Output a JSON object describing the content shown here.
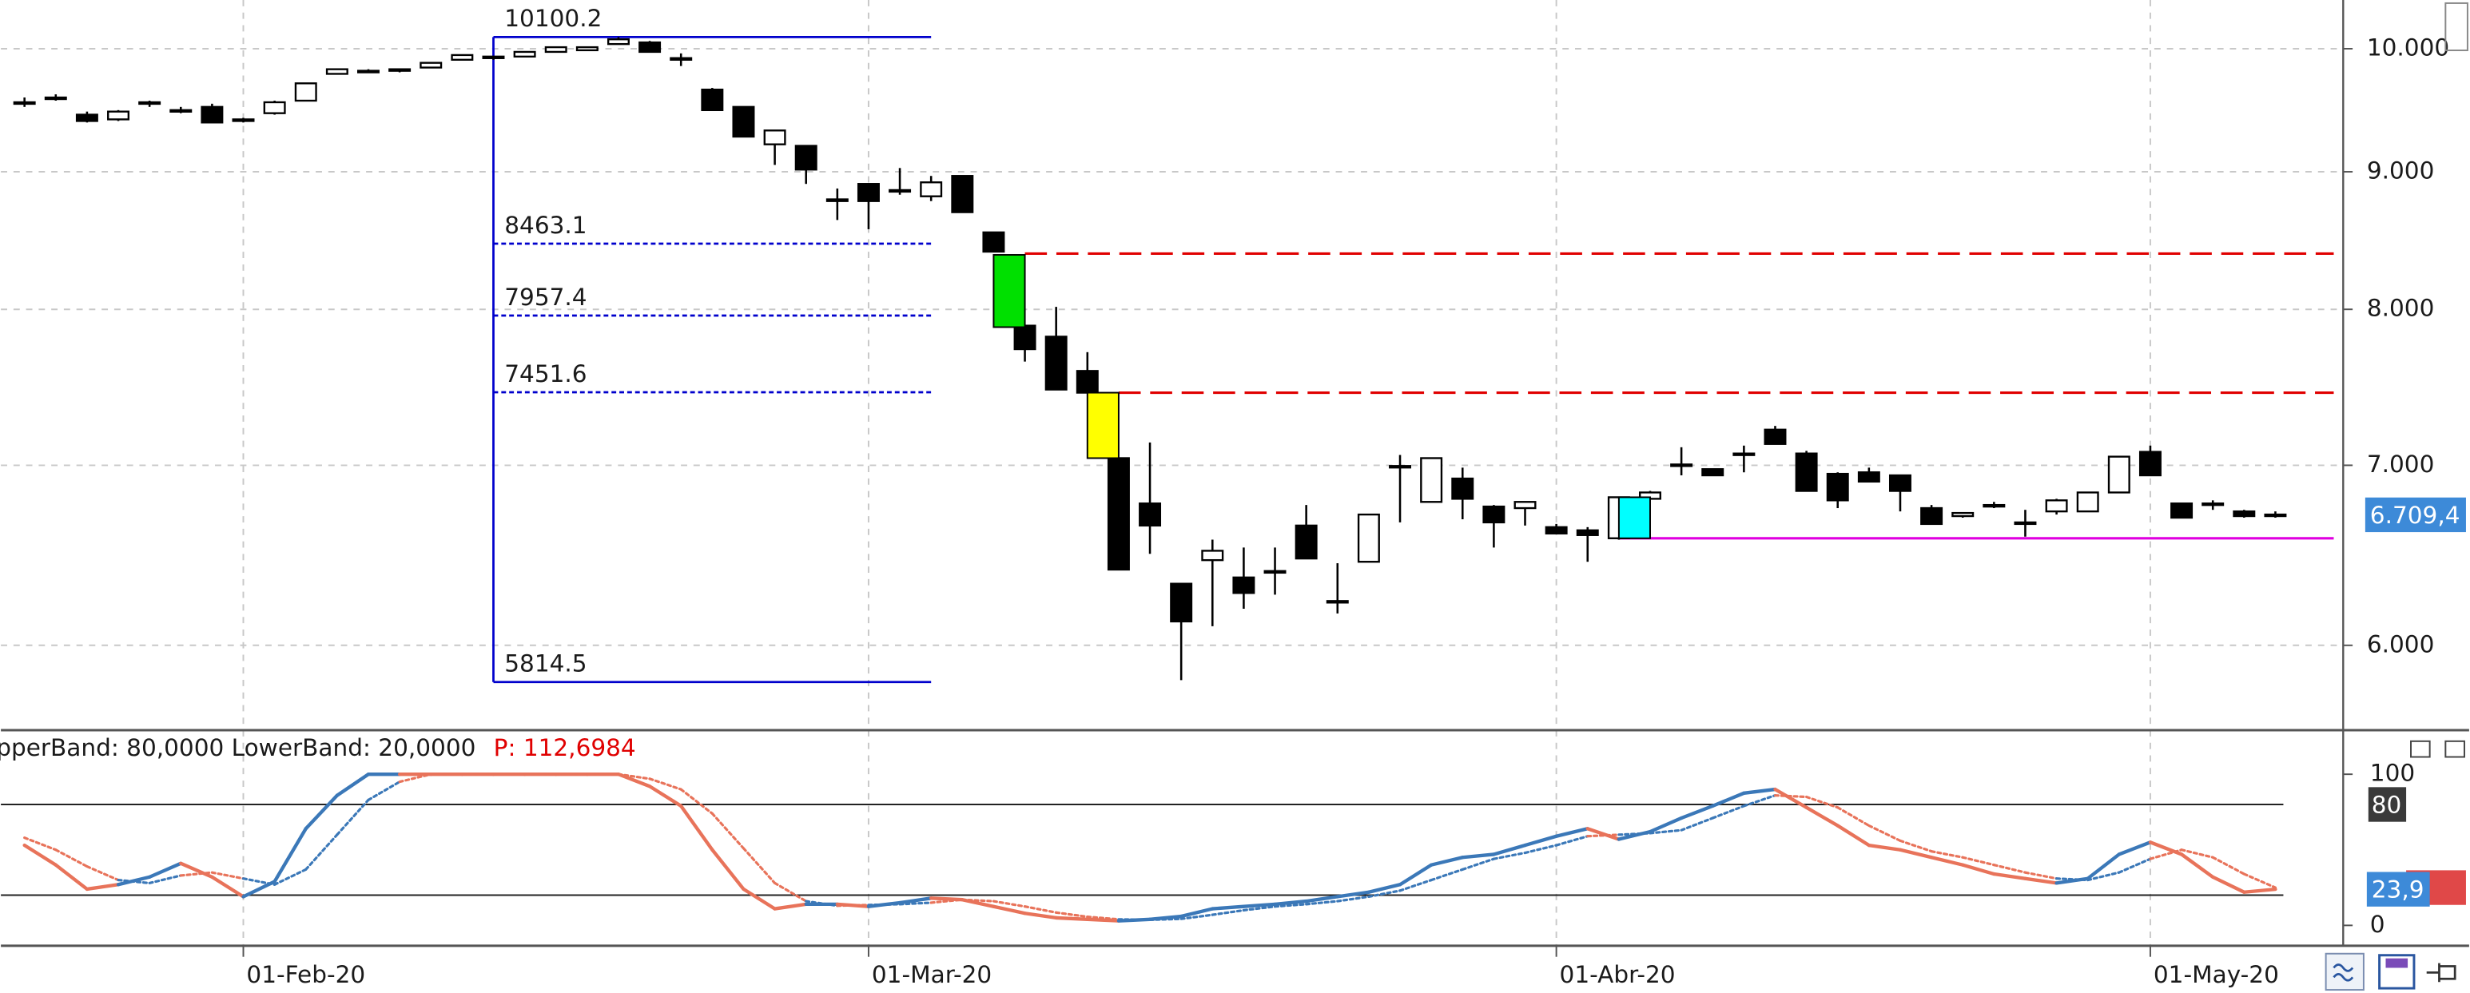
{
  "chart_data": [
    {
      "type": "candlestick",
      "categories": [
        null,
        null,
        null,
        null,
        null,
        null,
        null,
        "01-Feb-20",
        null,
        null,
        null,
        null,
        null,
        null,
        null,
        null,
        null,
        null,
        null,
        null,
        null,
        null,
        null,
        null,
        null,
        null,
        null,
        "01-Mar-20",
        null,
        null,
        null,
        null,
        null,
        null,
        null,
        null,
        null,
        null,
        null,
        null,
        null,
        null,
        null,
        null,
        null,
        null,
        null,
        null,
        null,
        "01-Abr-20",
        null,
        null,
        null,
        null,
        null,
        null,
        null,
        null,
        null,
        null,
        null,
        null,
        null,
        null,
        null,
        null,
        null,
        null,
        "01-May-20",
        null,
        null,
        null,
        null
      ],
      "open": [
        9552,
        9591,
        9451,
        9413,
        9540,
        9488,
        9514,
        9413,
        9463,
        9565,
        9787,
        9813,
        9813,
        9840,
        9906,
        9920,
        9933,
        9973,
        9987,
        10040,
        10054,
        9920,
        9656,
        9514,
        9214,
        9202,
        8777,
        8907,
        8860,
        8813,
        8968,
        8545,
        7889,
        7815,
        7589,
        7043,
        6775,
        6325,
        6454,
        6359,
        6385,
        6648,
        6232,
        6445,
        6996,
        6784,
        6921,
        6757,
        6748,
        6639,
        6621,
        6576,
        6802,
        7005,
        6977,
        7071,
        7217,
        7071,
        6949,
        6958,
        6940,
        6748,
        6702,
        6766,
        6657,
        6729,
        6729,
        6839,
        7081,
        6775,
        6766,
        6729,
        6711
      ],
      "high": [
        9591,
        9617,
        9476,
        9488,
        9565,
        9514,
        9540,
        9425,
        9565,
        9708,
        9826,
        9826,
        9826,
        9880,
        9946,
        9933,
        9973,
        10013,
        10013,
        10100,
        10067,
        9960,
        9670,
        9514,
        9324,
        9202,
        8872,
        8907,
        9029,
        8968,
        8968,
        8545,
        7889,
        8017,
        7712,
        7043,
        7138,
        6325,
        6568,
        6524,
        6524,
        6766,
        6437,
        6711,
        7062,
        7043,
        6986,
        6766,
        6784,
        6657,
        6639,
        6811,
        6848,
        7109,
        6977,
        7119,
        7240,
        7087,
        6958,
        6986,
        6940,
        6766,
        6720,
        6784,
        6738,
        6802,
        6839,
        7052,
        7119,
        6775,
        6793,
        6738,
        6729
      ],
      "low": [
        9514,
        9565,
        9388,
        9400,
        9514,
        9463,
        9388,
        9388,
        9451,
        9565,
        9787,
        9800,
        9800,
        9840,
        9906,
        9906,
        9933,
        9973,
        9987,
        10040,
        9973,
        9853,
        9488,
        9275,
        9053,
        8907,
        8636,
        8568,
        8825,
        8777,
        8694,
        8405,
        7650,
        7469,
        7449,
        6402,
        6489,
        5824,
        6099,
        6191,
        6266,
        6463,
        6166,
        6445,
        6666,
        6784,
        6684,
        6524,
        6648,
        6603,
        6445,
        6568,
        6802,
        6940,
        6940,
        6958,
        7129,
        6848,
        6748,
        6903,
        6729,
        6657,
        6693,
        6748,
        6585,
        6711,
        6729,
        6839,
        6940,
        6693,
        6738,
        6693,
        6693
      ],
      "close": [
        9540,
        9578,
        9400,
        9476,
        9552,
        9476,
        9388,
        9400,
        9552,
        9708,
        9826,
        9813,
        9826,
        9880,
        9946,
        9933,
        9973,
        10013,
        10013,
        10081,
        9973,
        9906,
        9488,
        9275,
        9324,
        9017,
        8790,
        8777,
        8860,
        8919,
        8694,
        8405,
        7732,
        7469,
        7449,
        6402,
        6648,
        6124,
        6506,
        6275,
        6394,
        6463,
        6232,
        6711,
        6996,
        7043,
        6802,
        6666,
        6784,
        6603,
        6594,
        6811,
        6839,
        6996,
        6940,
        7071,
        7129,
        6848,
        6793,
        6903,
        6848,
        6657,
        6720,
        6766,
        6666,
        6793,
        6839,
        7052,
        6940,
        6693,
        6775,
        6702,
        6709.4
      ],
      "last_label": "6.709,4",
      "up_color": "#ffffff",
      "down_color": "#000000",
      "ylim": [
        5587,
        10426
      ],
      "log_scale": true,
      "yticks": [
        {
          "value": 6000,
          "label": "6.000"
        },
        {
          "value": 7000,
          "label": "7.000"
        },
        {
          "value": 8000,
          "label": "8.000"
        },
        {
          "value": 9000,
          "label": "9.000"
        },
        {
          "value": 10000,
          "label": "10.000"
        }
      ],
      "grid": true,
      "fibonacci": {
        "color": "#0000cc",
        "start": 15,
        "end": 29,
        "levels": [
          10100.2,
          8463.1,
          7957.4,
          7451.6,
          5814.5
        ]
      },
      "lines": [
        {
          "value": 8391,
          "start": 32,
          "color": "#e00000",
          "style": "dashed"
        },
        {
          "value": 7449,
          "start": 35,
          "color": "#e00000",
          "style": "dashed"
        },
        {
          "value": 6576,
          "start": 51,
          "color": "#e000e0",
          "style": "solid"
        }
      ],
      "zones": [
        {
          "top": 8382,
          "bottom": 7879,
          "from": 31,
          "to": 32,
          "color": "#00e000"
        },
        {
          "top": 7449,
          "bottom": 7043,
          "from": 34,
          "to": 35,
          "color": "#ffff00"
        },
        {
          "top": 6811,
          "bottom": 6576,
          "from": 51,
          "to": 52,
          "color": "#00ffff"
        }
      ]
    },
    {
      "type": "line",
      "header": "pperBand: 80,0000 LowerBand: 20,0000",
      "header_value": "P: 112,6984",
      "series": [
        {
          "style": "solid",
          "values": [
            53,
            40,
            24,
            27,
            32,
            41,
            32,
            19,
            29,
            64,
            86,
            100,
            100,
            100,
            100,
            100,
            100,
            100,
            100,
            100,
            92,
            79,
            50,
            24,
            11,
            14,
            14,
            12.5,
            15,
            18,
            17,
            12.5,
            8,
            5,
            4,
            3,
            4,
            6,
            11,
            12.5,
            14,
            16,
            19,
            22,
            27,
            40,
            45,
            47,
            53,
            59,
            64,
            57,
            62,
            71,
            79,
            87.5,
            90,
            78,
            66,
            53,
            50,
            45,
            40,
            34,
            31,
            28,
            31,
            47,
            55,
            47,
            32,
            22,
            23.9
          ]
        },
        {
          "style": "dotted",
          "values": [
            58,
            50,
            39,
            30,
            28,
            33,
            35,
            31,
            27,
            37,
            60,
            83,
            95,
            100,
            100,
            100,
            100,
            100,
            100,
            100,
            97,
            90,
            74,
            51,
            28,
            16,
            13,
            13.5,
            14,
            15,
            17,
            16,
            12.5,
            8.5,
            5.7,
            4,
            3.7,
            4.3,
            7,
            10,
            12.5,
            14,
            16,
            19,
            23,
            30,
            37,
            44,
            48,
            53,
            59,
            60,
            61,
            63,
            71,
            79,
            86,
            85,
            78,
            66,
            56,
            49,
            45,
            40,
            35,
            31,
            30,
            35,
            44,
            50,
            45,
            34,
            25
          ]
        }
      ],
      "last_label": "23,9",
      "rise_color": "#3b78b8",
      "fall_color": "#e8735a",
      "bands": [
        80,
        20
      ],
      "ylim": [
        -13.5,
        128.1
      ],
      "yticks": [
        0,
        100
      ]
    }
  ]
}
